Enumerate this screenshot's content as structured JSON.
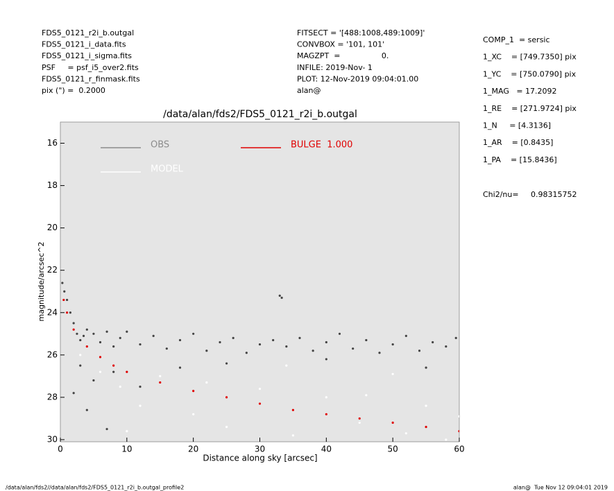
{
  "header_left": [
    "FDS5_0121_r2i_b.outgal",
    "FDS5_0121_i_data.fits",
    "FDS5_0121_i_sigma.fits",
    "PSF     = psf_i5_over2.fits",
    "FDS5_0121_r_finmask.fits",
    "pix (\") =  0.2000"
  ],
  "header_mid": [
    "FITSECT = '[488:1008,489:1009]'",
    "CONVBOX = '101, 101'",
    "MAGZPT  =                 0.",
    "INFILE: 2019-Nov- 1",
    "PLOT: 12-Nov-2019 09:04:01.00",
    "alan@"
  ],
  "params": [
    "COMP_1  = sersic",
    "1_XC    = [749.7350] pix",
    "1_YC    = [750.0790] pix",
    "1_MAG   = 17.2092",
    "1_RE    = [271.9724] pix",
    "1_N     = [4.3136]",
    "1_AR    = [0.8435]",
    "1_PA    = [15.8436]"
  ],
  "chi2": "Chi2/nu=     0.98315752",
  "footer_left": "/data/alan/fds2//data/alan/fds2/FDS5_0121_r2i_b.outgal_profile2",
  "footer_right": "alan@  Tue Nov 12 09:04:01 2019",
  "chart_data": {
    "type": "scatter",
    "title": "/data/alan/fds2/FDS5_0121_r2i_b.outgal",
    "xlabel": "Distance along sky [arcsec]",
    "ylabel": "magnitude/arcsec^2",
    "xlim": [
      0,
      60
    ],
    "ylim": [
      15,
      30.1
    ],
    "y_inverted": true,
    "xticks": [
      0,
      10,
      20,
      30,
      40,
      50,
      60
    ],
    "yticks": [
      16,
      18,
      20,
      22,
      24,
      26,
      28,
      30
    ],
    "background": "#e5e5e5",
    "series": [
      {
        "name": "OBS",
        "color": "#444444",
        "legend_color": "#8c8c8c",
        "x": [
          0.3,
          0.6,
          1,
          1.5,
          2,
          2.5,
          3,
          3.5,
          4,
          5,
          6,
          7,
          8,
          9,
          10,
          12,
          14,
          16,
          18,
          20,
          22,
          24,
          26,
          28,
          30,
          32,
          33,
          33.3,
          34,
          36,
          38,
          40,
          42,
          44,
          46,
          48,
          50,
          52,
          54,
          56,
          58,
          59.5,
          3,
          5,
          8,
          12,
          18,
          25,
          40,
          55,
          2,
          4,
          7
        ],
        "values": [
          22.6,
          23.0,
          23.4,
          24.0,
          24.5,
          25.0,
          25.3,
          25.1,
          24.8,
          25.0,
          25.4,
          24.9,
          25.6,
          25.2,
          24.9,
          25.5,
          25.1,
          25.7,
          25.3,
          25.0,
          25.8,
          25.4,
          25.2,
          25.9,
          25.5,
          25.3,
          23.2,
          23.3,
          25.6,
          25.2,
          25.8,
          25.4,
          25.0,
          25.7,
          25.3,
          25.9,
          25.5,
          25.1,
          25.8,
          25.4,
          25.6,
          25.2,
          26.5,
          27.2,
          26.8,
          27.5,
          26.6,
          26.4,
          26.2,
          26.6,
          27.8,
          28.6,
          29.5
        ]
      },
      {
        "name": "MODEL",
        "color": "#ffffff",
        "legend_color": "#ffffff",
        "x": [
          3,
          6,
          9,
          12,
          15,
          20,
          25,
          30,
          35,
          40,
          45,
          50,
          55,
          58,
          10,
          22,
          34,
          46,
          52,
          60
        ],
        "values": [
          26.0,
          26.8,
          27.5,
          28.4,
          27.0,
          28.8,
          29.4,
          27.6,
          29.8,
          28.0,
          29.2,
          26.9,
          28.4,
          30.0,
          29.6,
          27.3,
          26.5,
          27.9,
          29.7,
          28.9
        ]
      },
      {
        "name": "BULGE  1.000",
        "color": "#e00000",
        "legend_color": "#e00000",
        "x": [
          0.5,
          1,
          2,
          4,
          6,
          8,
          10,
          15,
          20,
          25,
          30,
          35,
          40,
          45,
          50,
          55,
          60
        ],
        "values": [
          23.4,
          24.0,
          24.8,
          25.6,
          26.1,
          26.5,
          26.8,
          27.3,
          27.7,
          28.0,
          28.3,
          28.6,
          28.8,
          29.0,
          29.2,
          29.4,
          29.6
        ]
      }
    ]
  }
}
